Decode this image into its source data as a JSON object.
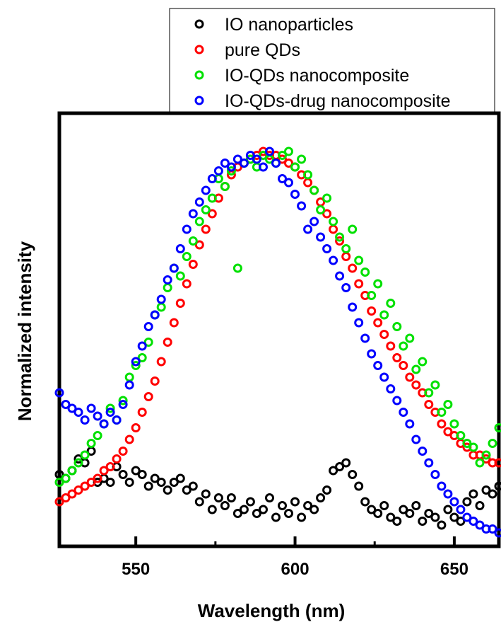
{
  "chart_data": {
    "type": "scatter",
    "xlabel": "Wavelength (nm)",
    "ylabel": "Normalized intensity",
    "xlim": [
      526,
      664
    ],
    "ylim": [
      0,
      1.0
    ],
    "x_ticks": [
      550,
      600,
      650
    ],
    "y_ticks_labeled": false,
    "grid": false,
    "legend_position": "top-right, above plot",
    "marker": "open circle",
    "series": [
      {
        "name": "IO nanoparticles",
        "color": "#000000",
        "x": [
          526,
          528,
          530,
          532,
          534,
          536,
          538,
          540,
          542,
          544,
          546,
          548,
          550,
          552,
          554,
          556,
          558,
          560,
          562,
          564,
          566,
          568,
          570,
          572,
          574,
          576,
          578,
          580,
          582,
          584,
          586,
          588,
          590,
          592,
          594,
          596,
          598,
          600,
          602,
          604,
          606,
          608,
          610,
          612,
          614,
          616,
          618,
          620,
          622,
          624,
          626,
          628,
          630,
          632,
          634,
          636,
          638,
          640,
          642,
          644,
          646,
          648,
          650,
          652,
          654,
          656,
          658,
          660,
          662,
          664
        ],
        "y": [
          0.17,
          0.16,
          0.18,
          0.21,
          0.2,
          0.23,
          0.15,
          0.16,
          0.15,
          0.19,
          0.17,
          0.15,
          0.18,
          0.17,
          0.14,
          0.16,
          0.15,
          0.13,
          0.15,
          0.16,
          0.13,
          0.14,
          0.1,
          0.12,
          0.08,
          0.11,
          0.09,
          0.11,
          0.07,
          0.08,
          0.1,
          0.07,
          0.08,
          0.11,
          0.06,
          0.09,
          0.07,
          0.1,
          0.06,
          0.09,
          0.08,
          0.11,
          0.13,
          0.18,
          0.19,
          0.2,
          0.17,
          0.14,
          0.1,
          0.08,
          0.07,
          0.09,
          0.06,
          0.05,
          0.08,
          0.07,
          0.09,
          0.05,
          0.07,
          0.06,
          0.04,
          0.08,
          0.06,
          0.05,
          0.1,
          0.12,
          0.09,
          0.13,
          0.12,
          0.14
        ]
      },
      {
        "name": "pure QDs",
        "color": "#ff0000",
        "x": [
          526,
          528,
          530,
          532,
          534,
          536,
          538,
          540,
          542,
          544,
          546,
          548,
          550,
          552,
          554,
          556,
          558,
          560,
          562,
          564,
          566,
          568,
          570,
          572,
          574,
          576,
          578,
          580,
          582,
          584,
          586,
          588,
          590,
          592,
          594,
          596,
          598,
          600,
          602,
          604,
          606,
          608,
          610,
          612,
          614,
          616,
          618,
          620,
          622,
          624,
          626,
          628,
          630,
          632,
          634,
          636,
          638,
          640,
          642,
          644,
          646,
          648,
          650,
          652,
          654,
          656,
          658,
          660,
          662,
          664
        ],
        "y": [
          0.1,
          0.11,
          0.12,
          0.13,
          0.14,
          0.15,
          0.16,
          0.18,
          0.19,
          0.21,
          0.23,
          0.26,
          0.29,
          0.33,
          0.37,
          0.41,
          0.46,
          0.51,
          0.56,
          0.61,
          0.66,
          0.71,
          0.76,
          0.8,
          0.84,
          0.88,
          0.91,
          0.94,
          0.96,
          0.97,
          0.98,
          0.99,
          1.0,
          0.99,
          0.99,
          0.98,
          0.97,
          0.96,
          0.94,
          0.92,
          0.9,
          0.87,
          0.84,
          0.8,
          0.77,
          0.73,
          0.7,
          0.66,
          0.63,
          0.59,
          0.56,
          0.53,
          0.5,
          0.47,
          0.45,
          0.42,
          0.4,
          0.38,
          0.35,
          0.33,
          0.3,
          0.28,
          0.27,
          0.25,
          0.24,
          0.22,
          0.22,
          0.21,
          0.2,
          0.2
        ]
      },
      {
        "name": "IO-QDs nanocomposite",
        "color": "#00e000",
        "x": [
          526,
          528,
          530,
          532,
          534,
          536,
          538,
          540,
          542,
          544,
          546,
          548,
          550,
          552,
          554,
          556,
          558,
          560,
          562,
          564,
          566,
          568,
          570,
          572,
          574,
          576,
          578,
          580,
          582,
          584,
          586,
          588,
          590,
          592,
          594,
          596,
          598,
          600,
          602,
          604,
          606,
          608,
          610,
          612,
          614,
          616,
          618,
          620,
          622,
          624,
          626,
          628,
          630,
          632,
          634,
          636,
          638,
          640,
          642,
          644,
          646,
          648,
          650,
          652,
          654,
          656,
          658,
          660,
          662,
          664
        ],
        "y": [
          0.15,
          0.16,
          0.18,
          0.2,
          0.22,
          0.25,
          0.27,
          0.3,
          0.34,
          0.31,
          0.36,
          0.42,
          0.45,
          0.47,
          0.51,
          0.58,
          0.6,
          0.65,
          0.7,
          0.68,
          0.73,
          0.77,
          0.82,
          0.85,
          0.88,
          0.93,
          0.91,
          0.95,
          0.7,
          0.97,
          0.98,
          0.96,
          0.99,
          0.98,
          0.97,
          0.99,
          1.0,
          0.96,
          0.98,
          0.94,
          0.9,
          0.85,
          0.88,
          0.82,
          0.78,
          0.75,
          0.8,
          0.72,
          0.69,
          0.63,
          0.66,
          0.58,
          0.61,
          0.55,
          0.5,
          0.52,
          0.44,
          0.46,
          0.38,
          0.4,
          0.33,
          0.35,
          0.3,
          0.27,
          0.25,
          0.24,
          0.2,
          0.22,
          0.25,
          0.29
        ]
      },
      {
        "name": "IO-QDs-drug nanocomposite",
        "color": "#0000ff",
        "x": [
          526,
          528,
          530,
          532,
          534,
          536,
          538,
          540,
          542,
          544,
          546,
          548,
          550,
          552,
          554,
          556,
          558,
          560,
          562,
          564,
          566,
          568,
          570,
          572,
          574,
          576,
          578,
          580,
          582,
          584,
          586,
          588,
          590,
          592,
          594,
          596,
          598,
          600,
          602,
          604,
          606,
          608,
          610,
          612,
          614,
          616,
          618,
          620,
          622,
          624,
          626,
          628,
          630,
          632,
          634,
          636,
          638,
          640,
          642,
          644,
          646,
          648,
          650,
          652,
          654,
          656,
          658,
          660,
          662,
          664
        ],
        "y": [
          0.38,
          0.35,
          0.34,
          0.33,
          0.31,
          0.34,
          0.32,
          0.3,
          0.33,
          0.31,
          0.35,
          0.4,
          0.46,
          0.5,
          0.55,
          0.58,
          0.62,
          0.67,
          0.7,
          0.75,
          0.8,
          0.84,
          0.87,
          0.9,
          0.93,
          0.95,
          0.97,
          0.96,
          0.98,
          0.97,
          0.99,
          0.98,
          0.96,
          1.0,
          0.97,
          0.93,
          0.92,
          0.89,
          0.86,
          0.8,
          0.82,
          0.78,
          0.75,
          0.72,
          0.68,
          0.65,
          0.6,
          0.56,
          0.52,
          0.48,
          0.45,
          0.42,
          0.39,
          0.36,
          0.33,
          0.3,
          0.26,
          0.23,
          0.2,
          0.17,
          0.14,
          0.12,
          0.1,
          0.08,
          0.06,
          0.05,
          0.04,
          0.03,
          0.03,
          0.02
        ]
      }
    ]
  }
}
